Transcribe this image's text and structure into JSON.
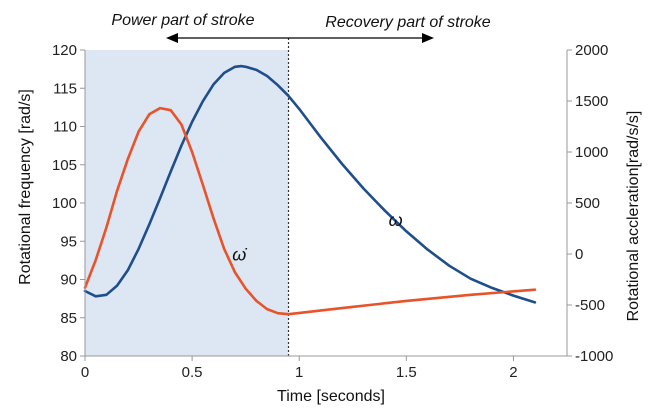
{
  "chart_data": {
    "type": "line",
    "xlabel": "Time [seconds]",
    "ylabel": "Rotational frequency [rad/s]",
    "y2label": "Rotational accleration[rad/s/s]",
    "xlim": [
      0,
      2.25
    ],
    "ylim": [
      80,
      120
    ],
    "y2lim": [
      -1000,
      2000
    ],
    "x_ticks": [
      "0",
      "0.5",
      "1",
      "1.5",
      "2"
    ],
    "x_tick_values": [
      0,
      0.5,
      1,
      1.5,
      2
    ],
    "y_ticks": [
      "80",
      "85",
      "90",
      "95",
      "100",
      "105",
      "110",
      "115",
      "120"
    ],
    "y_tick_values": [
      80,
      85,
      90,
      95,
      100,
      105,
      110,
      115,
      120
    ],
    "y2_ticks": [
      "-1000",
      "-500",
      "0",
      "500",
      "1000",
      "1500",
      "2000"
    ],
    "y2_tick_values": [
      -1000,
      -500,
      0,
      500,
      1000,
      1500,
      2000
    ],
    "grid": false,
    "shaded_region": {
      "x0": 0,
      "x1": 0.95,
      "color": "#dde6f3"
    },
    "divider_x": 0.95,
    "annotations": [
      {
        "text": "Power part of stroke",
        "arrow": "left"
      },
      {
        "text": "Recovery part of stroke",
        "arrow": "right"
      }
    ],
    "series": [
      {
        "label": "ω",
        "axis": "left",
        "color": "#1f4e8c",
        "x": [
          0,
          0.05,
          0.1,
          0.15,
          0.2,
          0.25,
          0.3,
          0.35,
          0.4,
          0.45,
          0.5,
          0.55,
          0.6,
          0.65,
          0.7,
          0.73,
          0.75,
          0.8,
          0.85,
          0.9,
          0.95,
          1.0,
          1.1,
          1.2,
          1.3,
          1.4,
          1.5,
          1.6,
          1.7,
          1.8,
          1.9,
          2.0,
          2.1
        ],
        "y": [
          88.5,
          87.8,
          88.0,
          89.2,
          91.2,
          94.0,
          97.2,
          100.6,
          104.1,
          107.5,
          110.6,
          113.3,
          115.5,
          117.0,
          117.8,
          117.9,
          117.8,
          117.4,
          116.6,
          115.4,
          114.0,
          112.3,
          108.6,
          105.1,
          101.9,
          99.0,
          96.3,
          93.9,
          91.8,
          90.1,
          88.9,
          87.9,
          87.0
        ]
      },
      {
        "label": "ω̇",
        "axis": "right",
        "color": "#e8532a",
        "x": [
          0,
          0.05,
          0.1,
          0.15,
          0.2,
          0.25,
          0.3,
          0.35,
          0.4,
          0.45,
          0.5,
          0.55,
          0.6,
          0.65,
          0.7,
          0.75,
          0.8,
          0.85,
          0.9,
          0.95,
          1.2,
          1.5,
          1.8,
          2.1
        ],
        "y": [
          -330,
          -60,
          260,
          620,
          930,
          1200,
          1370,
          1430,
          1410,
          1270,
          1000,
          680,
          350,
          50,
          -180,
          -340,
          -460,
          -540,
          -580,
          -590,
          -530,
          -460,
          -400,
          -350
        ]
      }
    ],
    "series_labels": [
      {
        "text": "ω",
        "x": 1.45,
        "y": 97
      },
      {
        "text": "ω̇",
        "x": 0.72,
        "y": 92.5
      }
    ]
  }
}
